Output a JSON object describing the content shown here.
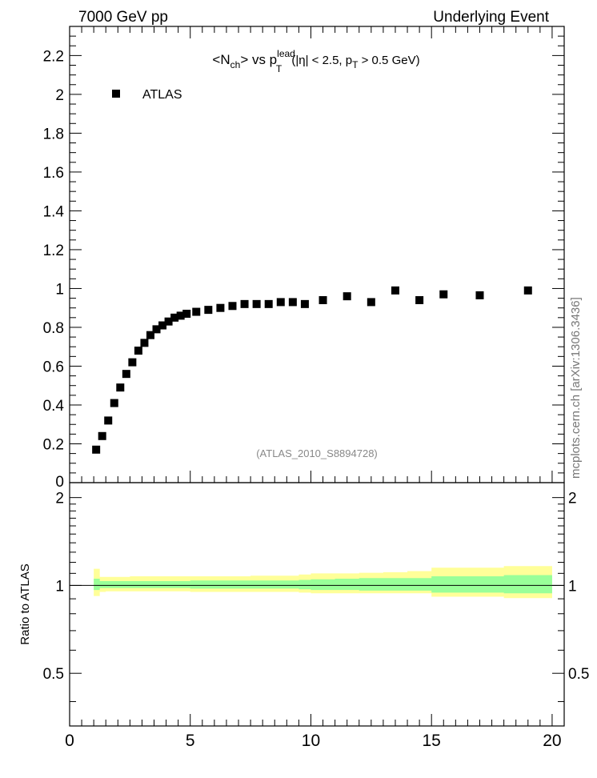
{
  "header": {
    "left": "7000 GeV pp",
    "right": "Underlying Event"
  },
  "watermark": "mcplots.cern.ch [arXiv:1306.3436]",
  "analysis_tag": "(ATLAS_2010_S8894728)",
  "colors": {
    "data": "#000000",
    "band_outer": "#ffff99",
    "band_inner": "#99ff99",
    "tag": "#888888"
  },
  "chart_data": [
    {
      "type": "scatter",
      "title": {
        "lt": "<N",
        "sub1": "ch",
        "mid": "> vs p",
        "sup": "lead",
        "sub2": "T",
        "rest1": " (|η| < 2.5, p",
        "sub3": "T",
        "rest2": " > 0.5 GeV)"
      },
      "legend": {
        "entries": [
          "ATLAS"
        ],
        "position": "top-left"
      },
      "xlim": [
        0,
        20.5
      ],
      "ylim": [
        0,
        2.35
      ],
      "yticks": [
        "0",
        "0.2",
        "0.4",
        "0.6",
        "0.8",
        "1",
        "1.2",
        "1.4",
        "1.6",
        "1.8",
        "2",
        "2.2"
      ],
      "series": [
        {
          "name": "ATLAS",
          "x": [
            1.1,
            1.35,
            1.6,
            1.85,
            2.1,
            2.35,
            2.6,
            2.85,
            3.1,
            3.35,
            3.6,
            3.85,
            4.1,
            4.35,
            4.6,
            4.85,
            5.25,
            5.75,
            6.25,
            6.75,
            7.25,
            7.75,
            8.25,
            8.75,
            9.25,
            9.75,
            10.5,
            11.5,
            12.5,
            13.5,
            14.5,
            15.5,
            17.0,
            19.0
          ],
          "y": [
            0.17,
            0.24,
            0.32,
            0.41,
            0.49,
            0.56,
            0.62,
            0.68,
            0.72,
            0.76,
            0.79,
            0.81,
            0.83,
            0.85,
            0.86,
            0.87,
            0.88,
            0.89,
            0.9,
            0.91,
            0.92,
            0.92,
            0.92,
            0.93,
            0.93,
            0.92,
            0.94,
            0.96,
            0.93,
            0.99,
            0.94,
            0.97,
            0.965,
            0.99
          ]
        }
      ]
    },
    {
      "type": "area",
      "ylabel": "Ratio to ATLAS",
      "xlim": [
        0,
        20.5
      ],
      "ylim": [
        0.33,
        2.25
      ],
      "yticks": [
        "0.5",
        "1",
        "2"
      ],
      "xticks": [
        "0",
        "5",
        "10",
        "15",
        "20"
      ],
      "reference": 1,
      "bands": [
        {
          "kind": "outer",
          "x": [
            1.0,
            1.25,
            1.5,
            2.5,
            5.0,
            7.5,
            9.5,
            10.0,
            11.0,
            12.0,
            13.0,
            14.0,
            15.0,
            16.0,
            18.0,
            20.0
          ],
          "lo": [
            0.92,
            0.95,
            0.955,
            0.955,
            0.95,
            0.95,
            0.945,
            0.94,
            0.94,
            0.94,
            0.94,
            0.94,
            0.915,
            0.915,
            0.905,
            0.905
          ],
          "hi": [
            1.14,
            1.07,
            1.07,
            1.075,
            1.075,
            1.08,
            1.09,
            1.1,
            1.1,
            1.105,
            1.11,
            1.12,
            1.15,
            1.15,
            1.165,
            1.165
          ]
        },
        {
          "kind": "inner",
          "x": [
            1.0,
            1.25,
            1.5,
            2.5,
            5.0,
            7.5,
            9.5,
            10.0,
            11.0,
            12.0,
            13.0,
            14.0,
            15.0,
            16.0,
            18.0,
            20.0
          ],
          "lo": [
            0.965,
            0.98,
            0.98,
            0.98,
            0.975,
            0.975,
            0.97,
            0.965,
            0.965,
            0.96,
            0.96,
            0.96,
            0.945,
            0.945,
            0.94,
            0.94
          ],
          "hi": [
            1.055,
            1.035,
            1.035,
            1.035,
            1.04,
            1.04,
            1.045,
            1.05,
            1.055,
            1.06,
            1.06,
            1.06,
            1.075,
            1.075,
            1.085,
            1.085
          ]
        }
      ]
    }
  ]
}
